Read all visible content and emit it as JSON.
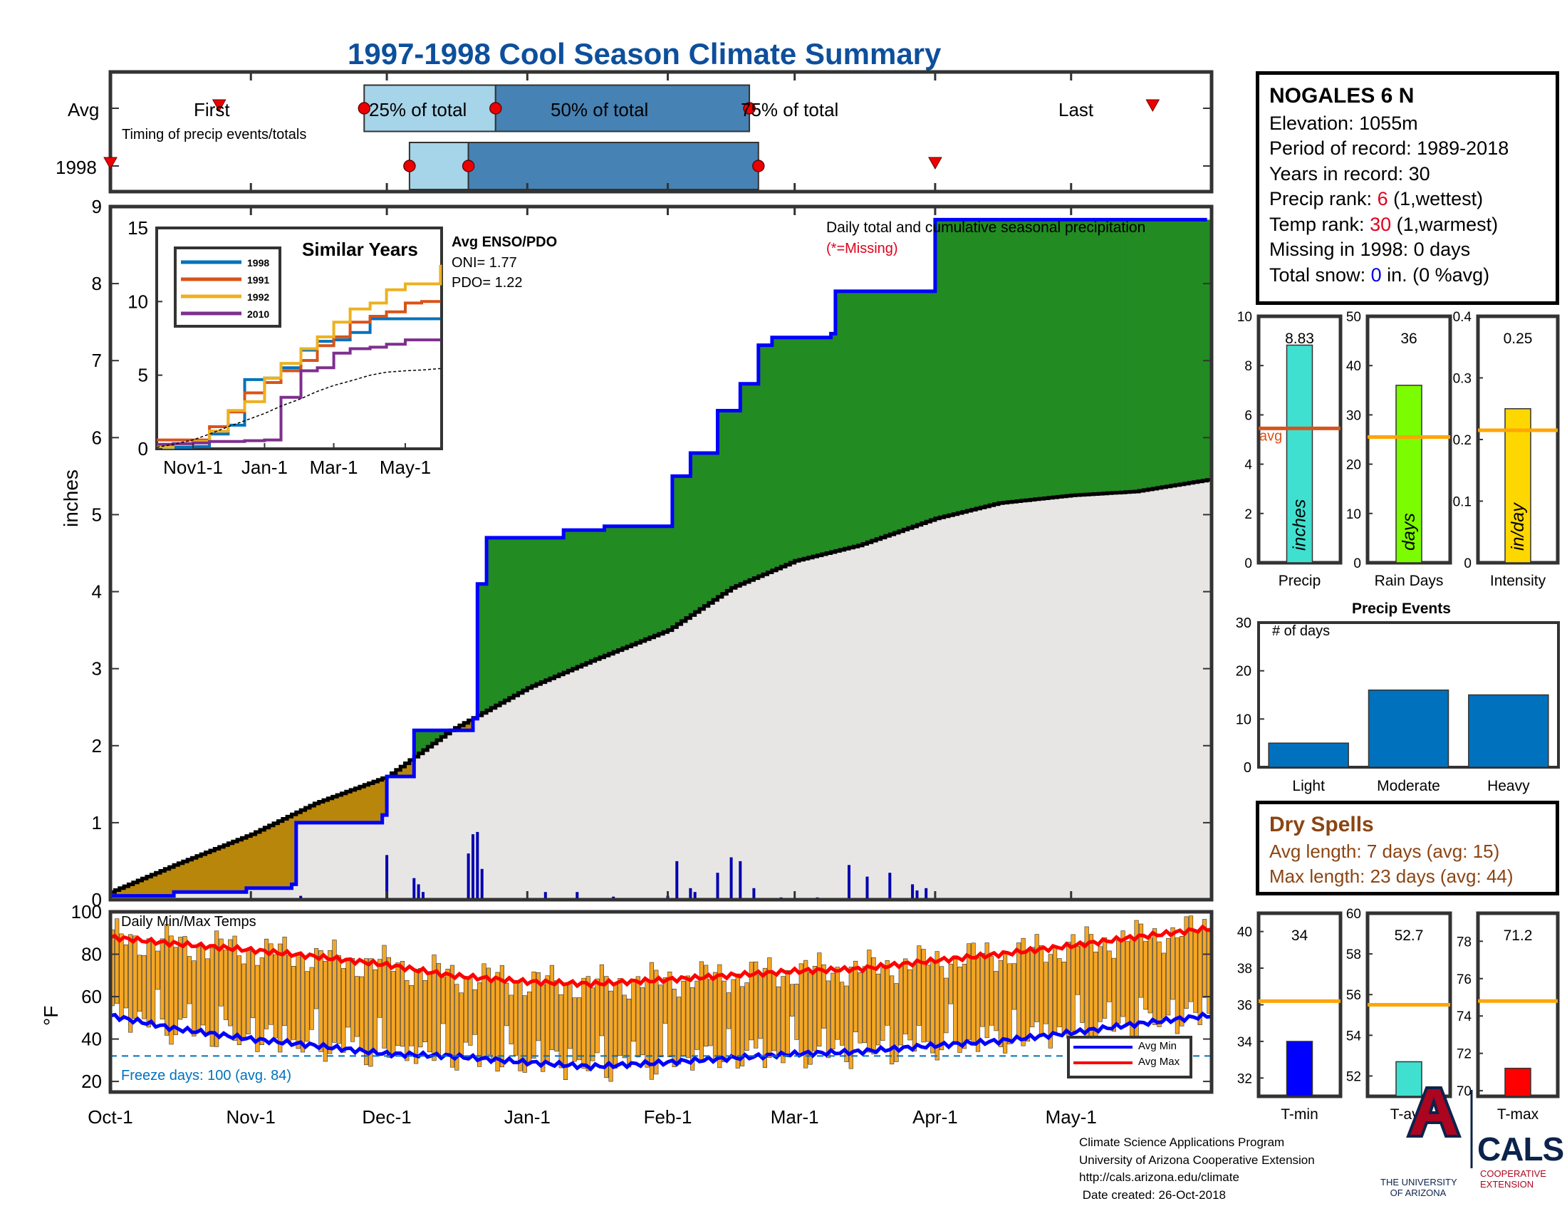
{
  "title": "1997-1998 Cool Season Climate Summary",
  "colors": {
    "navy_title": "#0d4f9c",
    "brown_fill": "#b8860b",
    "green_fill": "#228b22",
    "gray_fill": "#e8e6e4",
    "cum_line": "#0000ff",
    "avg_line": "#000000",
    "daily_bar": "#0000b0",
    "temp_bar": "#f5a623",
    "max_line": "#ff0000",
    "min_line": "#0000ff",
    "freeze_line": "#0072bd",
    "light_blue": "#a6d4e8",
    "mid_blue": "#4682b4",
    "bar_blue": "#0072bd",
    "ua_red": "#ab0520",
    "ua_navy": "#0c234b"
  },
  "timeline": {
    "rows": [
      "Avg",
      "1998"
    ],
    "subtitle": "Timing of precip events/totals",
    "labels": {
      "first": "First",
      "p25": "25% of total",
      "p50": "50% of total",
      "p75": "75% of total",
      "last": "Last"
    },
    "avg": {
      "first": "Oct-25",
      "p25": "Nov-26",
      "p50": "Dec-25",
      "p75": "Feb-19",
      "last": "May-19"
    },
    "y1998": {
      "first": "Oct-1",
      "p25": "Dec-6",
      "p50": "Dec-19",
      "p75": "Feb-21",
      "last": "Apr-1"
    }
  },
  "main": {
    "ylabel": "inches",
    "ylim": [
      0,
      9
    ],
    "yticks": [
      "0",
      "1",
      "2",
      "3",
      "4",
      "5",
      "6",
      "7",
      "8",
      "9"
    ],
    "xticks": [
      "Oct-1",
      "Nov-1",
      "Dec-1",
      "Jan-1",
      "Feb-1",
      "Mar-1",
      "Apr-1",
      "May-1"
    ],
    "desc": "Daily total and cumulative seasonal precipitation",
    "missing": "(*=Missing)"
  },
  "enso": {
    "head": "Avg ENSO/PDO",
    "oni": "ONI= 1.77",
    "pdo": "PDO= 1.22"
  },
  "similar": {
    "title": "Similar Years",
    "yticks": [
      "0",
      "5",
      "10",
      "15"
    ],
    "xticks": [
      "Nov1-1",
      "Jan-1",
      "Mar-1",
      "May-1"
    ],
    "legend": [
      {
        "name": "1998",
        "color": "#0072bd"
      },
      {
        "name": "1991",
        "color": "#d95319"
      },
      {
        "name": "1992",
        "color": "#edb120"
      },
      {
        "name": "2010",
        "color": "#7e2f8e"
      }
    ]
  },
  "station": {
    "name": "NOGALES 6 N",
    "elevation": "Elevation: 1055m",
    "period": "Period of record: 1989-2018",
    "years": "Years in record: 30",
    "precip_rank_label": "Precip rank: ",
    "precip_rank": "6",
    "precip_rank_tail": " (1,wettest)",
    "temp_rank_label": "Temp rank: ",
    "temp_rank": "30",
    "temp_rank_tail": " (1,warmest)",
    "missing": "Missing in 1998: 0 days",
    "snow_label": "Total snow: ",
    "snow": "0",
    "snow_tail": " in. (0 %avg)"
  },
  "stats": [
    {
      "label": "Precip",
      "unit": "inches",
      "value": "8.83",
      "ticks": [
        "0",
        "2",
        "4",
        "6",
        "8",
        "10"
      ],
      "avg_label": "avg",
      "color": "#40e0d0"
    },
    {
      "label": "Rain Days",
      "unit": "days",
      "value": "36",
      "ticks": [
        "0",
        "10",
        "20",
        "30",
        "40",
        "50"
      ],
      "color": "#7cfc00"
    },
    {
      "label": "Intensity",
      "unit": "in/day",
      "value": "0.25",
      "ticks": [
        "0",
        "0.1",
        "0.2",
        "0.3",
        "0.4"
      ],
      "color": "#ffd700"
    }
  ],
  "events": {
    "title": "Precip Events",
    "ylabel": "# of days",
    "yticks": [
      "0",
      "10",
      "20",
      "30"
    ],
    "categories": [
      "Light",
      "Moderate",
      "Heavy"
    ]
  },
  "dry": {
    "title": "Dry Spells",
    "avg": "Avg length: 7 days (avg: 15)",
    "max": "Max length: 23 days (avg: 44)"
  },
  "temps": {
    "label": "Daily Min/Max Temps",
    "ylabel": "°F",
    "yticks": [
      "20",
      "40",
      "60",
      "80",
      "100"
    ],
    "freeze": "Freeze days: 100 (avg. 84)",
    "legend_min": "Avg Min",
    "legend_max": "Avg Max"
  },
  "temp_stats": [
    {
      "label": "T-min",
      "value": "34",
      "ticks": [
        "32",
        "34",
        "36",
        "38",
        "40"
      ],
      "color": "#0000ff"
    },
    {
      "label": "T-avg",
      "value": "52.7",
      "ticks": [
        "52",
        "54",
        "56",
        "58",
        "60"
      ],
      "color": "#40e0d0"
    },
    {
      "label": "T-max",
      "value": "71.2",
      "ticks": [
        "70",
        "72",
        "74",
        "76",
        "78"
      ],
      "color": "#ff0000"
    }
  ],
  "footer": {
    "l1": "Climate Science Applications Program",
    "l2": "University of Arizona Cooperative Extension",
    "l3": "http://cals.arizona.edu/climate",
    "l4": " Date created: 26-Oct-2018",
    "ua1": "THE UNIVERSITY",
    "ua2": "OF ARIZONA",
    "cals": "CALS",
    "coop1": "COOPERATIVE",
    "coop2": "EXTENSION"
  },
  "chart_data": [
    {
      "type": "area",
      "title": "",
      "xlabel": "",
      "ylabel": "inches",
      "x_range": [
        "Oct-1",
        "May-31"
      ],
      "ylim": [
        0,
        9
      ],
      "series": [
        {
          "name": "",
          "x": [
            "Oct-1",
            "Oct-15",
            "Oct-31",
            "Nov-10",
            "Nov-11",
            "Nov-30",
            "Dec-1",
            "Dec-7",
            "Dec-20",
            "Dec-21",
            "Dec-23",
            "Jan-9",
            "Jan-18",
            "Feb-1",
            "Feb-2",
            "Feb-6",
            "Feb-12",
            "Feb-17",
            "Feb-21",
            "Feb-24",
            "Mar-9",
            "Mar-10",
            "Apr-1",
            "May-31"
          ],
          "y": [
            0.05,
            0.1,
            0.15,
            0.2,
            1.0,
            1.1,
            1.6,
            2.2,
            2.35,
            4.1,
            4.7,
            4.8,
            4.85,
            4.85,
            5.5,
            5.8,
            6.35,
            6.7,
            7.2,
            7.3,
            7.35,
            7.9,
            8.83,
            8.83
          ]
        },
        {
          "name": "",
          "x": [
            "Oct-1",
            "Oct-15",
            "Nov-1",
            "Nov-15",
            "Dec-1",
            "Dec-15",
            "Jan-1",
            "Jan-15",
            "Feb-1",
            "Feb-15",
            "Mar-1",
            "Mar-15",
            "Apr-1",
            "Apr-15",
            "May-1",
            "May-15",
            "May-31"
          ],
          "y": [
            0.1,
            0.45,
            0.85,
            1.25,
            1.6,
            2.2,
            2.75,
            3.1,
            3.5,
            4.05,
            4.4,
            4.6,
            4.95,
            5.15,
            5.25,
            5.3,
            5.45
          ]
        }
      ],
      "daily": {
        "x": [
          "Nov-12",
          "Dec-1",
          "Dec-7",
          "Dec-8",
          "Dec-9",
          "Dec-19",
          "Dec-20",
          "Dec-21",
          "Dec-22",
          "Jan-5",
          "Jan-12",
          "Jan-20",
          "Feb-1",
          "Feb-3",
          "Feb-6",
          "Feb-7",
          "Feb-12",
          "Feb-15",
          "Feb-17",
          "Feb-20",
          "Feb-26",
          "Mar-6",
          "Mar-13",
          "Mar-17",
          "Mar-22",
          "Mar-27",
          "Mar-28",
          "Mar-30"
        ],
        "y": [
          0.05,
          0.58,
          0.28,
          0.2,
          0.1,
          0.6,
          0.85,
          0.88,
          0.4,
          0.1,
          0.1,
          0.04,
          0.05,
          0.5,
          0.15,
          0.1,
          0.35,
          0.55,
          0.5,
          0.15,
          0.03,
          0.03,
          0.45,
          0.3,
          0.35,
          0.2,
          0.12,
          0.15
        ]
      }
    },
    {
      "type": "line",
      "title": "Similar Years",
      "x": [
        "Oct-1",
        "Oct-15",
        "Nov-1",
        "Nov-15",
        "Dec-1",
        "Dec-15",
        "Jan-1",
        "Jan-15",
        "Feb-1",
        "Feb-15",
        "Mar-1",
        "Mar-15",
        "Apr-1",
        "Apr-15",
        "May-1",
        "May-15",
        "May-31"
      ],
      "ylim": [
        0,
        15
      ],
      "series": [
        {
          "name": "1998",
          "values": [
            0.05,
            0.1,
            0.15,
            1.0,
            1.6,
            4.7,
            4.8,
            5.5,
            6.7,
            7.3,
            7.4,
            7.9,
            8.83,
            8.83,
            8.83,
            8.83,
            8.83
          ]
        },
        {
          "name": "1991",
          "values": [
            0.6,
            0.6,
            0.6,
            1.5,
            2.5,
            3.8,
            4.5,
            5.3,
            6.0,
            7.0,
            7.6,
            8.6,
            9.0,
            9.3,
            9.9,
            10.0,
            10.0
          ]
        },
        {
          "name": "1992",
          "values": [
            0.1,
            0.3,
            0.5,
            1.2,
            2.6,
            3.2,
            4.8,
            5.8,
            6.8,
            7.6,
            8.6,
            9.5,
            9.9,
            10.8,
            11.2,
            11.2,
            12.5
          ]
        },
        {
          "name": "2010",
          "values": [
            0.3,
            0.35,
            0.4,
            0.5,
            0.5,
            0.55,
            0.6,
            3.5,
            5.3,
            5.5,
            6.5,
            6.8,
            6.9,
            7.1,
            7.4,
            7.4,
            7.4
          ]
        },
        {
          "name": "",
          "values": [
            0.1,
            0.3,
            0.6,
            1.0,
            1.5,
            1.9,
            2.4,
            2.9,
            3.4,
            3.9,
            4.3,
            4.6,
            5.0,
            5.2,
            5.3,
            5.35,
            5.45
          ]
        }
      ]
    },
    {
      "type": "bar",
      "title": "",
      "categories": [
        "Precip",
        "Rain Days",
        "Intensity"
      ],
      "values": [
        8.83,
        36,
        0.25
      ],
      "avg": [
        5.45,
        25.5,
        0.215
      ],
      "ylim": [
        [
          0,
          10
        ],
        [
          0,
          50
        ],
        [
          0,
          0.4
        ]
      ]
    },
    {
      "type": "bar",
      "title": "Precip Events",
      "categories": [
        "Light",
        "Moderate",
        "Heavy"
      ],
      "values": [
        5,
        16,
        15
      ],
      "ylabel": "# of days",
      "ylim": [
        0,
        30
      ]
    },
    {
      "type": "line",
      "title": "Daily Min/Max Temps",
      "ylabel": "°F",
      "x": [
        "Oct-1",
        "Oct-15",
        "Nov-1",
        "Nov-15",
        "Dec-1",
        "Dec-15",
        "Jan-1",
        "Jan-15",
        "Feb-1",
        "Feb-15",
        "Mar-1",
        "Mar-15",
        "Apr-1",
        "Apr-15",
        "May-1",
        "May-15",
        "May-31"
      ],
      "ylim": [
        15,
        100
      ],
      "series": [
        {
          "name": "Avg Max",
          "values": [
            88,
            85,
            82,
            79,
            75,
            70,
            67,
            66,
            68,
            70,
            72,
            73,
            77,
            80,
            84,
            88,
            92
          ]
        },
        {
          "name": "Avg Min",
          "values": [
            51,
            45,
            40,
            37,
            33,
            32,
            29,
            27,
            29,
            31,
            33,
            34,
            37,
            39,
            43,
            47,
            51
          ]
        }
      ],
      "freeze_line": 32
    },
    {
      "type": "bar",
      "title": "",
      "categories": [
        "T-min",
        "T-avg",
        "T-max"
      ],
      "values": [
        34,
        52.7,
        71.2
      ],
      "avg": [
        36.2,
        55.5,
        74.8
      ],
      "ylim": [
        [
          31,
          41
        ],
        [
          51,
          60
        ],
        [
          69.7,
          79.5
        ]
      ]
    }
  ]
}
